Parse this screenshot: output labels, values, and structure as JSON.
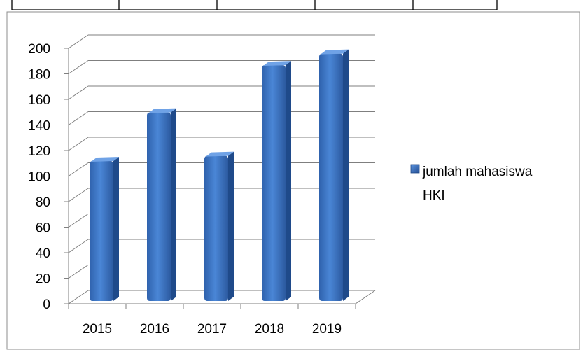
{
  "chart_data": {
    "type": "bar",
    "categories": [
      "2015",
      "2016",
      "2017",
      "2018",
      "2019"
    ],
    "series": [
      {
        "name": "jumlah mahasiswa HKI",
        "values": [
          114,
          152,
          118,
          189,
          198
        ],
        "color": "#3a73c4"
      }
    ],
    "legend": {
      "lines": [
        "jumlah mahasiswa",
        "HKI"
      ],
      "position": "right"
    },
    "title": "",
    "xlabel": "",
    "ylabel": "",
    "ylim": [
      0,
      200
    ],
    "yticks": [
      "0",
      "20",
      "40",
      "60",
      "80",
      "100",
      "120",
      "140",
      "160",
      "180",
      "200"
    ],
    "grid": true
  }
}
